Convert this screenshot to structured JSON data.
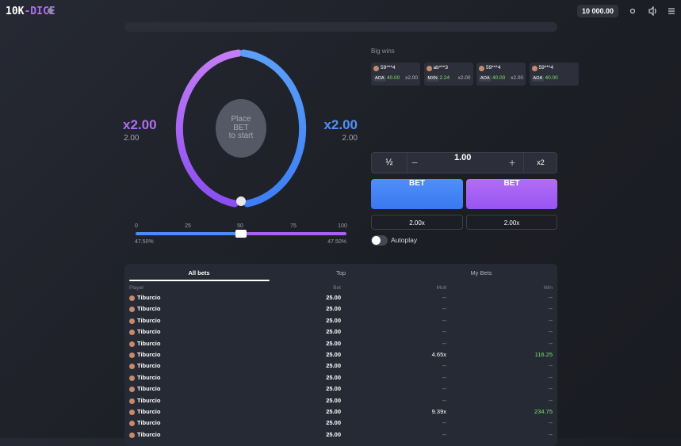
{
  "header": {
    "logo": [
      "10K",
      "-DICE"
    ],
    "balance": "10 000.00"
  },
  "game": {
    "left": {
      "multiplier": "x2.00",
      "value": "2.00"
    },
    "right": {
      "multiplier": "x2.00",
      "value": "2.00"
    },
    "center": [
      "Place",
      "BET",
      "to start"
    ],
    "slider": {
      "ticks": [
        "0",
        "25",
        "50",
        "75",
        "100"
      ],
      "left_chance": "47.50%",
      "right_chance": "47.50%"
    }
  },
  "big_wins": {
    "title": "Big wins",
    "cards": [
      {
        "user": "59***4",
        "currency": "AOA",
        "amount": "40.00",
        "multiplier": "x2.00"
      },
      {
        "user": "ab***3",
        "currency": "MXN",
        "amount": "2.24",
        "multiplier": "x2.00"
      },
      {
        "user": "59***4",
        "currency": "AOA",
        "amount": "40.00",
        "multiplier": "x2.00"
      },
      {
        "user": "59***4",
        "currency": "AOA",
        "amount": "40.00"
      }
    ]
  },
  "bet_panel": {
    "half": "½",
    "minus": "−",
    "amount": "1.00",
    "plus": "+",
    "double": "x2",
    "buttons": [
      "BET",
      "BET"
    ],
    "payouts": [
      "2.00x",
      "2.00x"
    ],
    "autoplay": "Autoplay"
  },
  "bets_table": {
    "tabs": [
      "All bets",
      "Top",
      "My Bets"
    ],
    "columns": [
      "Player",
      "Bet",
      "Mult",
      "Win"
    ],
    "rows": [
      [
        "Tiburcio",
        "25.00",
        "--",
        "--"
      ],
      [
        "Tiburcio",
        "25.00",
        "--",
        "--"
      ],
      [
        "Tiburcio",
        "25.00",
        "--",
        "--"
      ],
      [
        "Tiburcio",
        "25.00",
        "--",
        "--"
      ],
      [
        "Tiburcio",
        "25.00",
        "--",
        "--"
      ],
      [
        "Tiburcio",
        "25.00",
        "4.65x",
        "116.25"
      ],
      [
        "Tiburcio",
        "25.00",
        "--",
        "--"
      ],
      [
        "Tiburcio",
        "25.00",
        "--",
        "--"
      ],
      [
        "Tiburcio",
        "25.00",
        "--",
        "--"
      ],
      [
        "Tiburcio",
        "25.00",
        "--",
        "--"
      ],
      [
        "Tiburcio",
        "25.00",
        "9.39x",
        "234.75"
      ],
      [
        "Tiburcio",
        "25.00",
        "--",
        "--"
      ],
      [
        "Tiburcio",
        "25.00",
        "--",
        "--"
      ]
    ]
  }
}
